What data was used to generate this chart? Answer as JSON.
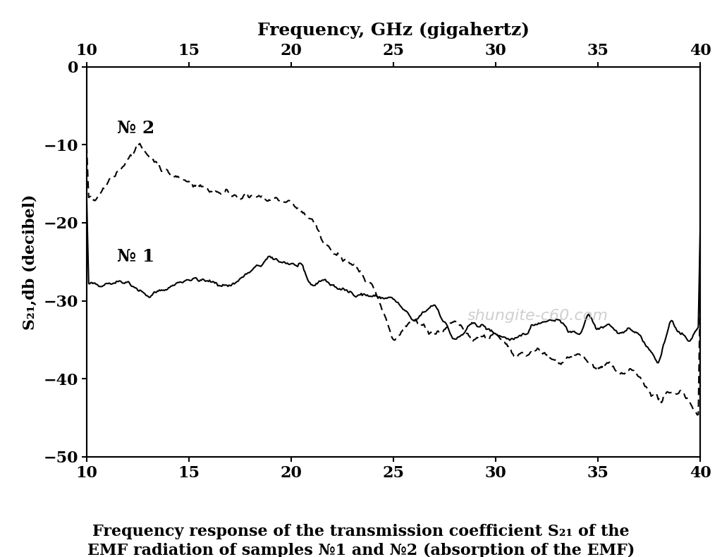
{
  "title_top": "Frequency, GHz (gigahertz)",
  "ylabel": "S₂₁,db (decibel)",
  "caption_line1": "Frequency response of the transmission coefficient S₂₁ of the",
  "caption_line2": "EMF radiation of samples №1 and №2 (absorption of the EMF)",
  "watermark": "shungite-c60.com",
  "xlim": [
    10,
    40
  ],
  "ylim": [
    -50,
    0
  ],
  "xticks": [
    10,
    15,
    20,
    25,
    30,
    35,
    40
  ],
  "yticks": [
    0,
    -10,
    -20,
    -30,
    -40,
    -50
  ],
  "label1": "№ 1",
  "label2": "№ 2",
  "background_color": "#ffffff",
  "line_color": "#000000",
  "watermark_color": "#bbbbbb"
}
